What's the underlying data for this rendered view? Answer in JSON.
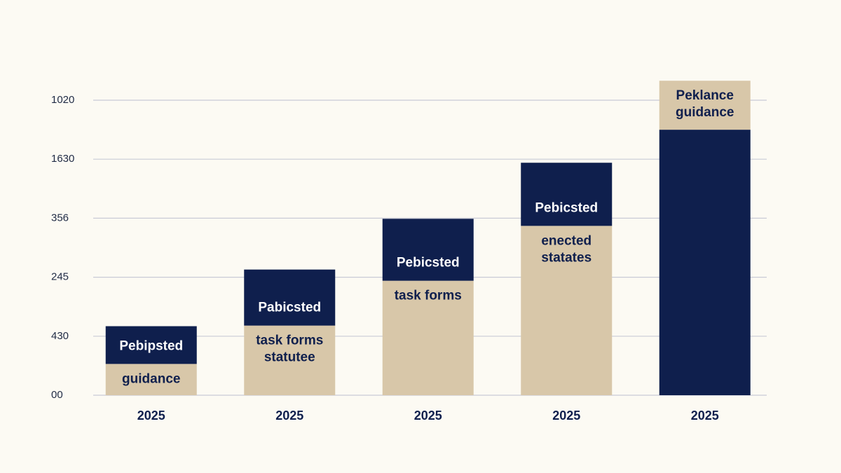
{
  "chart_data": {
    "type": "bar",
    "stacked": true,
    "categories": [
      "2025",
      "2025",
      "2025",
      "2025",
      "2025"
    ],
    "series": [
      {
        "values": [
          0.53,
          1.18,
          1.94,
          2.87,
          4.5
        ],
        "colors": [
          "#d8c7a9",
          "#d8c7a9",
          "#d8c7a9",
          "#d8c7a9",
          "#0f1f4d"
        ],
        "labels": [
          [
            "guidance"
          ],
          [
            "task forms",
            "statutee"
          ],
          [
            "task forms"
          ],
          [
            "enected",
            "statates"
          ],
          null
        ]
      },
      {
        "values": [
          0.64,
          0.95,
          1.05,
          1.07,
          0.83
        ],
        "colors": [
          "#0f1f4d",
          "#0f1f4d",
          "#0f1f4d",
          "#0f1f4d",
          "#d8c7a9"
        ],
        "labels": [
          [
            "Pebipsted"
          ],
          [
            "Pabicsted"
          ],
          [
            "Pebicsted"
          ],
          [
            "Pebicsted"
          ],
          [
            "Peklance",
            "guidance"
          ]
        ]
      }
    ],
    "ylim": [
      0,
      5.5
    ],
    "yticks": [
      {
        "value": 0,
        "label": "00"
      },
      {
        "value": 1,
        "label": "430"
      },
      {
        "value": 2,
        "label": "245"
      },
      {
        "value": 3,
        "label": "356"
      },
      {
        "value": 4,
        "label": "1630"
      },
      {
        "value": 5,
        "label": "1020"
      }
    ],
    "grid": true
  }
}
